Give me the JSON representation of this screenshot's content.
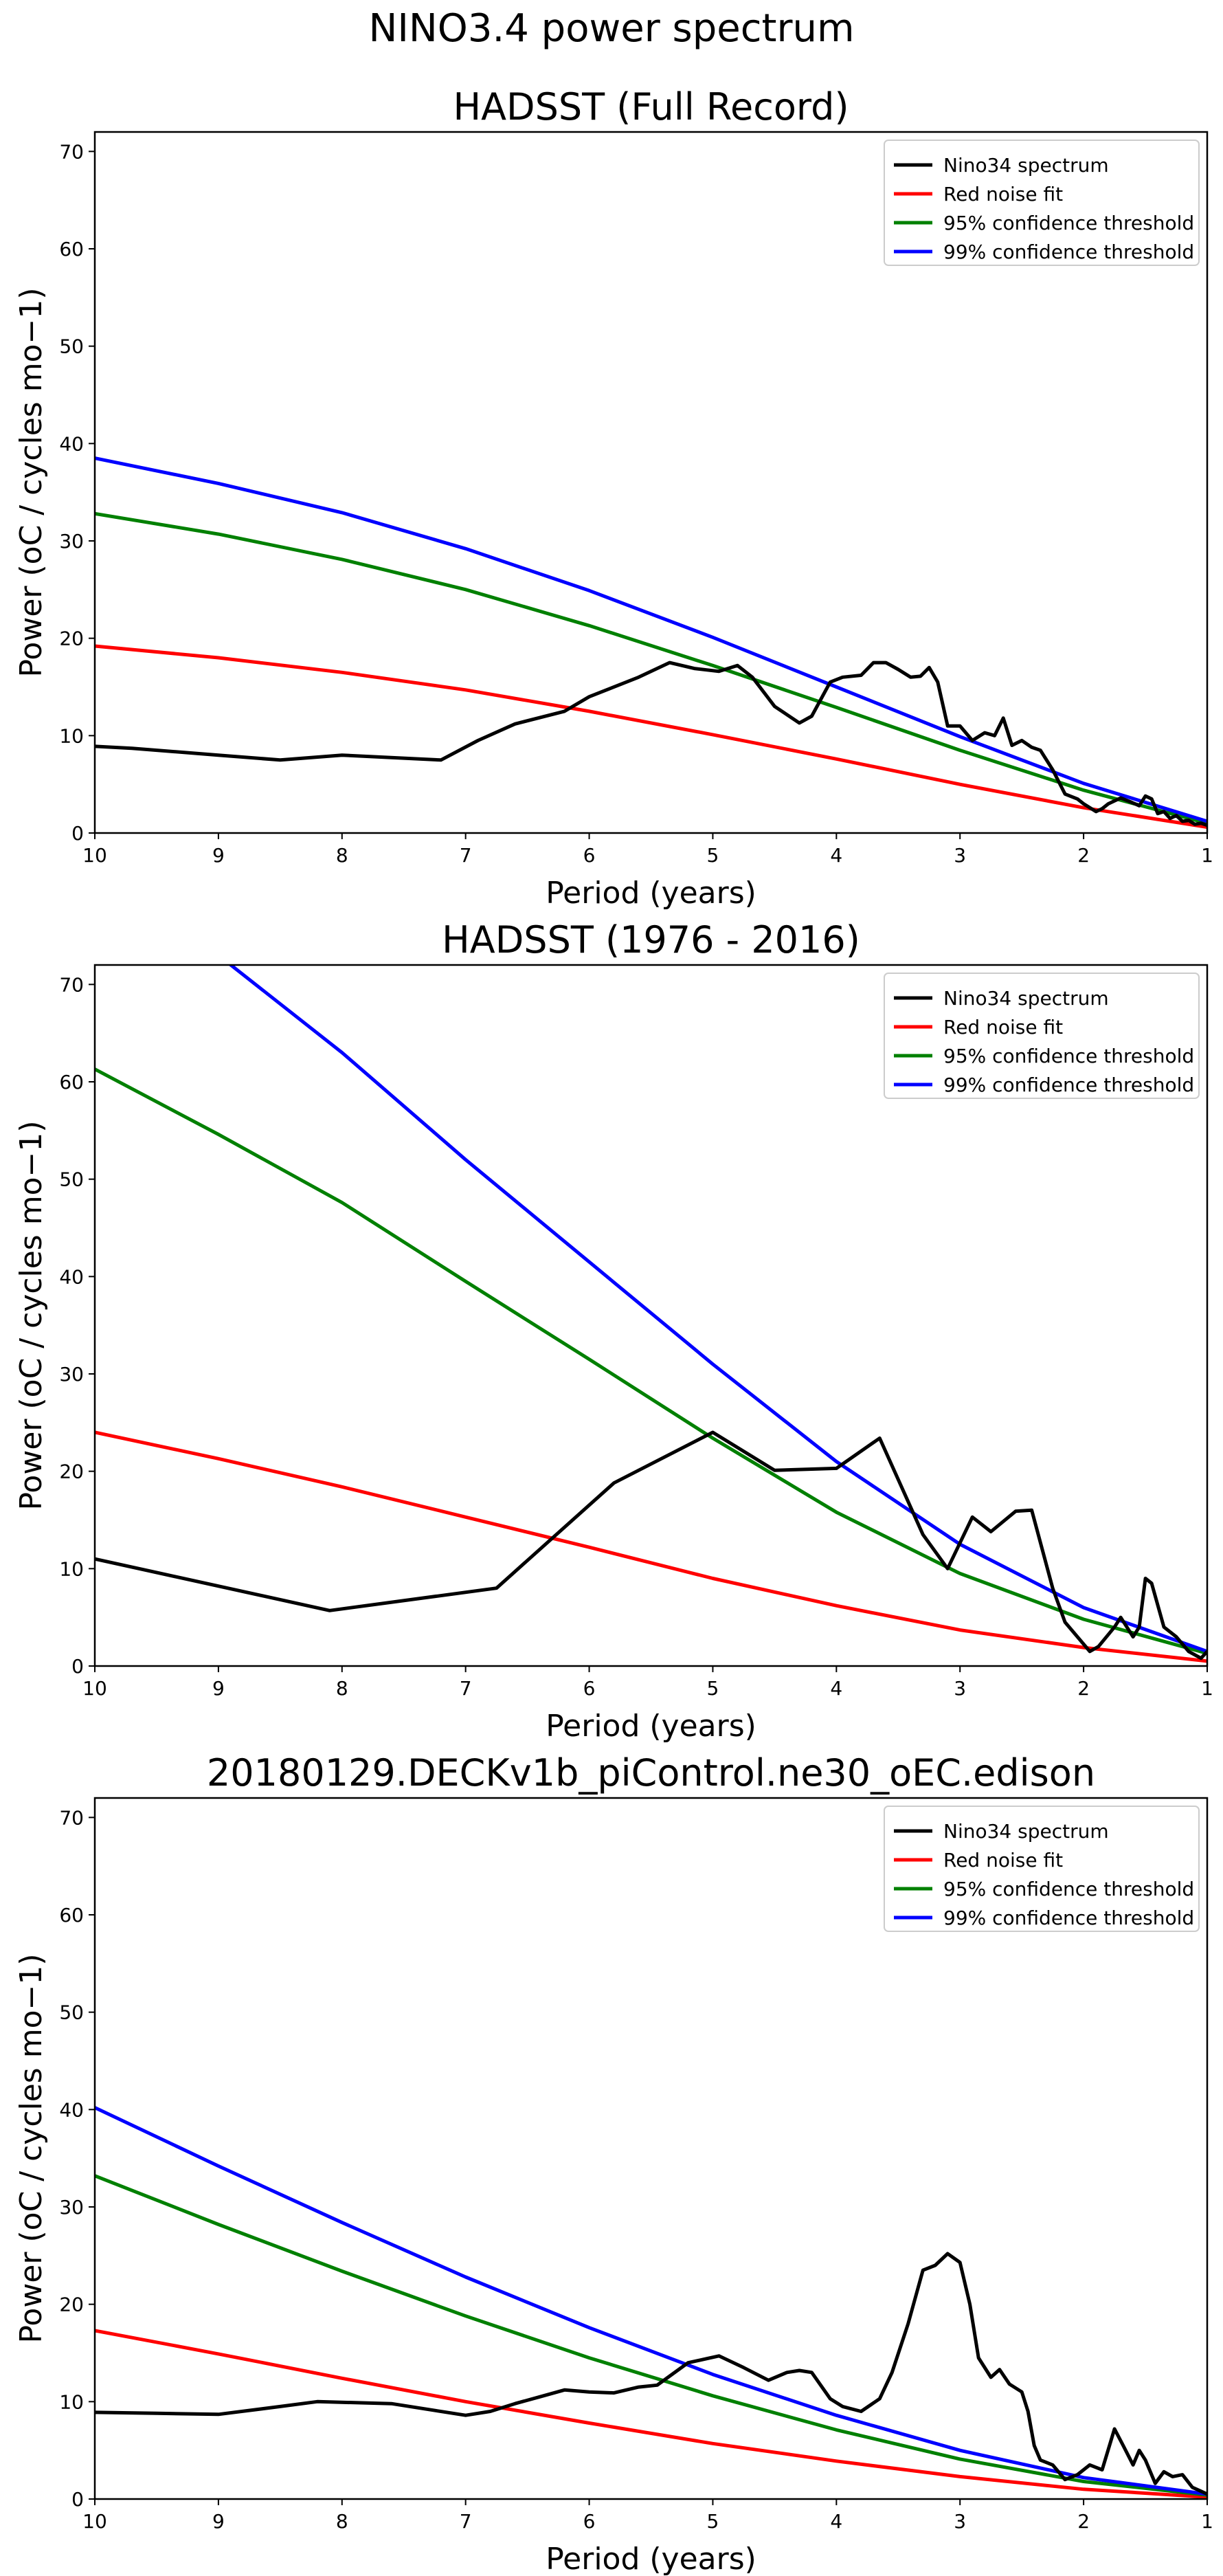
{
  "figure": {
    "suptitle": "NINO3.4 power spectrum"
  },
  "chart_data": [
    {
      "type": "line",
      "title": "HADSST (Full Record)",
      "xlabel": "Period (years)",
      "ylabel": "Power (oC / cycles mo−1)",
      "xlim": [
        10,
        1
      ],
      "ylim": [
        0,
        72
      ],
      "xticks": [
        "10",
        "9",
        "8",
        "7",
        "6",
        "5",
        "4",
        "3",
        "2",
        "1"
      ],
      "yticks": [
        "0",
        "10",
        "20",
        "30",
        "40",
        "50",
        "60",
        "70"
      ],
      "legend": "top-right",
      "series": [
        {
          "name": "Nino34 spectrum",
          "color": "#000000",
          "x": [
            10,
            9.7,
            9,
            8.5,
            8,
            7.2,
            6.9,
            6.6,
            6.2,
            6,
            5.6,
            5.35,
            5.15,
            4.95,
            4.8,
            4.68,
            4.5,
            4.3,
            4.2,
            4.05,
            3.95,
            3.8,
            3.7,
            3.6,
            3.5,
            3.4,
            3.32,
            3.25,
            3.18,
            3.1,
            3.0,
            2.9,
            2.8,
            2.72,
            2.65,
            2.58,
            2.5,
            2.42,
            2.35,
            2.25,
            2.15,
            2.05,
            2.0,
            1.9,
            1.85,
            1.8,
            1.7,
            1.62,
            1.55,
            1.5,
            1.45,
            1.4,
            1.35,
            1.3,
            1.25,
            1.2,
            1.15,
            1.1,
            1.05,
            1.0
          ],
          "y": [
            8.9,
            8.7,
            8.0,
            7.5,
            8.0,
            7.5,
            9.5,
            11.2,
            12.5,
            14.0,
            16.0,
            17.5,
            16.9,
            16.6,
            17.2,
            16.0,
            13.0,
            11.3,
            12.0,
            15.5,
            16.0,
            16.2,
            17.5,
            17.5,
            16.8,
            16.0,
            16.1,
            17.0,
            15.5,
            11.0,
            11.0,
            9.5,
            10.3,
            10.0,
            11.8,
            9.0,
            9.5,
            8.8,
            8.5,
            6.5,
            4.0,
            3.5,
            3.0,
            2.2,
            2.5,
            3.0,
            3.6,
            3.2,
            2.8,
            3.8,
            3.5,
            2.0,
            2.2,
            1.5,
            1.8,
            1.2,
            1.3,
            0.9,
            1.0,
            0.8
          ]
        },
        {
          "name": "Red noise fit",
          "color": "#ff0000",
          "x": [
            10,
            9,
            8,
            7,
            6,
            5,
            4,
            3,
            2,
            1
          ],
          "y": [
            19.2,
            18.0,
            16.5,
            14.7,
            12.5,
            10.1,
            7.6,
            5.0,
            2.6,
            0.6
          ]
        },
        {
          "name": "95% confidence threshold",
          "color": "#008000",
          "x": [
            10,
            9,
            8,
            7,
            6,
            5,
            4,
            3,
            2,
            1
          ],
          "y": [
            32.8,
            30.7,
            28.1,
            25.0,
            21.3,
            17.2,
            12.9,
            8.5,
            4.4,
            1.0
          ]
        },
        {
          "name": "99% confidence threshold",
          "color": "#0000ff",
          "x": [
            10,
            9,
            8,
            7,
            6,
            5,
            4,
            3,
            2,
            1
          ],
          "y": [
            38.5,
            35.9,
            32.9,
            29.2,
            24.9,
            20.1,
            15.0,
            9.9,
            5.1,
            1.2
          ]
        }
      ]
    },
    {
      "type": "line",
      "title": "HADSST (1976 - 2016)",
      "xlabel": "Period (years)",
      "ylabel": "Power (oC / cycles mo−1)",
      "xlim": [
        10,
        1
      ],
      "ylim": [
        0,
        72
      ],
      "xticks": [
        "10",
        "9",
        "8",
        "7",
        "6",
        "5",
        "4",
        "3",
        "2",
        "1"
      ],
      "yticks": [
        "0",
        "10",
        "20",
        "30",
        "40",
        "50",
        "60",
        "70"
      ],
      "legend": "top-right",
      "series": [
        {
          "name": "Nino34 spectrum",
          "color": "#000000",
          "x": [
            10,
            8.1,
            6.75,
            5.8,
            5.0,
            4.5,
            4.0,
            3.65,
            3.3,
            3.1,
            2.9,
            2.75,
            2.55,
            2.42,
            2.25,
            2.15,
            2.05,
            1.95,
            1.88,
            1.75,
            1.7,
            1.6,
            1.55,
            1.5,
            1.45,
            1.35,
            1.25,
            1.15,
            1.05,
            1.0
          ],
          "y": [
            11.0,
            5.7,
            8.0,
            18.8,
            24.0,
            20.1,
            20.3,
            23.4,
            13.5,
            10.0,
            15.3,
            13.8,
            15.9,
            16.0,
            8.0,
            4.5,
            3.0,
            1.5,
            2.0,
            4.0,
            5.0,
            3.0,
            4.0,
            9.0,
            8.5,
            4.0,
            3.0,
            1.5,
            0.8,
            1.5
          ]
        },
        {
          "name": "Red noise fit",
          "color": "#ff0000",
          "x": [
            10,
            9,
            8,
            7,
            6,
            5,
            4,
            3,
            2,
            1
          ],
          "y": [
            24.0,
            21.3,
            18.4,
            15.3,
            12.2,
            9.0,
            6.2,
            3.7,
            1.9,
            0.5
          ]
        },
        {
          "name": "95% confidence threshold",
          "color": "#008000",
          "x": [
            10,
            9,
            8,
            7,
            6,
            5,
            4,
            3,
            2,
            1
          ],
          "y": [
            61.3,
            54.6,
            47.6,
            39.5,
            31.5,
            23.4,
            15.8,
            9.5,
            4.8,
            1.3
          ]
        },
        {
          "name": "99% confidence threshold",
          "color": "#0000ff",
          "x": [
            10,
            9,
            8,
            7,
            6,
            5,
            4,
            3,
            2,
            1
          ],
          "y": [
            82.0,
            73.0,
            63.0,
            52.0,
            41.5,
            31.0,
            21.0,
            12.5,
            6.0,
            1.5
          ]
        }
      ]
    },
    {
      "type": "line",
      "title": "20180129.DECKv1b_piControl.ne30_oEC.edison",
      "xlabel": "Period (years)",
      "ylabel": "Power (oC / cycles mo−1)",
      "xlim": [
        10,
        1
      ],
      "ylim": [
        0,
        72
      ],
      "xticks": [
        "10",
        "9",
        "8",
        "7",
        "6",
        "5",
        "4",
        "3",
        "2",
        "1"
      ],
      "yticks": [
        "0",
        "10",
        "20",
        "30",
        "40",
        "50",
        "60",
        "70"
      ],
      "legend": "top-right",
      "series": [
        {
          "name": "Nino34 spectrum",
          "color": "#000000",
          "x": [
            10,
            9.5,
            9,
            8.5,
            8.2,
            7.6,
            7.3,
            7.0,
            6.8,
            6.6,
            6.4,
            6.2,
            6.0,
            5.8,
            5.6,
            5.45,
            5.2,
            4.95,
            4.75,
            4.55,
            4.4,
            4.3,
            4.2,
            4.05,
            3.95,
            3.8,
            3.65,
            3.55,
            3.42,
            3.3,
            3.2,
            3.1,
            3.0,
            2.92,
            2.85,
            2.75,
            2.68,
            2.6,
            2.5,
            2.45,
            2.4,
            2.35,
            2.25,
            2.15,
            2.05,
            1.95,
            1.85,
            1.75,
            1.68,
            1.6,
            1.55,
            1.5,
            1.42,
            1.35,
            1.28,
            1.2,
            1.12,
            1.05,
            1.0
          ],
          "y": [
            8.9,
            8.8,
            8.7,
            9.5,
            10.0,
            9.8,
            9.2,
            8.6,
            9.0,
            9.8,
            10.5,
            11.2,
            11.0,
            10.9,
            11.5,
            11.7,
            14.0,
            14.7,
            13.5,
            12.2,
            13.0,
            13.2,
            13.0,
            10.3,
            9.5,
            9.0,
            10.3,
            13.0,
            18.0,
            23.5,
            24.0,
            25.2,
            24.3,
            20.0,
            14.5,
            12.5,
            13.3,
            11.8,
            11.0,
            9.0,
            5.5,
            4.0,
            3.5,
            2.0,
            2.5,
            3.5,
            3.0,
            7.2,
            5.5,
            3.5,
            5.0,
            4.0,
            1.6,
            2.8,
            2.3,
            2.5,
            1.2,
            0.8,
            0.5
          ]
        },
        {
          "name": "Red noise fit",
          "color": "#ff0000",
          "x": [
            10,
            9,
            8,
            7,
            6,
            5,
            4,
            3,
            2,
            1
          ],
          "y": [
            17.3,
            14.9,
            12.4,
            10.0,
            7.8,
            5.7,
            3.9,
            2.3,
            1.0,
            0.2
          ]
        },
        {
          "name": "95% confidence threshold",
          "color": "#008000",
          "x": [
            10,
            9,
            8,
            7,
            6,
            5,
            4,
            3,
            2,
            1
          ],
          "y": [
            33.2,
            28.2,
            23.4,
            18.8,
            14.5,
            10.6,
            7.1,
            4.1,
            1.8,
            0.4
          ]
        },
        {
          "name": "99% confidence threshold",
          "color": "#0000ff",
          "x": [
            10,
            9,
            8,
            7,
            6,
            5,
            4,
            3,
            2,
            1
          ],
          "y": [
            40.2,
            34.2,
            28.4,
            22.8,
            17.6,
            12.8,
            8.6,
            5.0,
            2.2,
            0.5
          ]
        }
      ]
    }
  ]
}
